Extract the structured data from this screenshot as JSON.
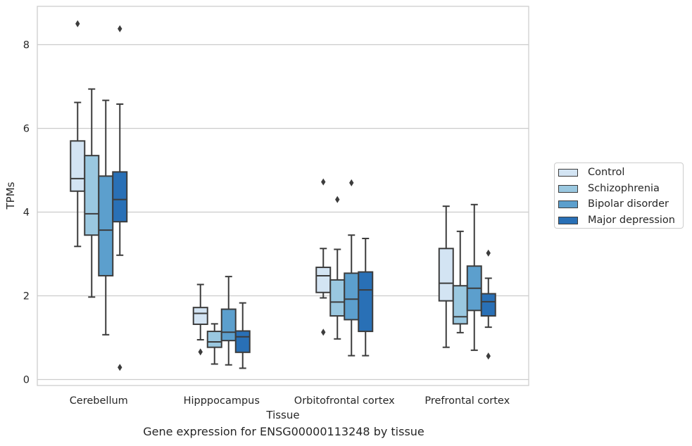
{
  "chart_data": {
    "type": "box",
    "title": "",
    "caption": "Gene expression for ENSG00000113248 by tissue",
    "xlabel": "Tissue",
    "ylabel": "TPMs",
    "ylim": [
      -0.12,
      8.9
    ],
    "yticks": [
      0,
      2,
      4,
      6,
      8
    ],
    "grid": "horizontal",
    "legend_position": "right",
    "categories": [
      "Cerebellum",
      "Hipppocampus",
      "Orbitofrontal cortex",
      "Prefrontal cortex"
    ],
    "series": [
      {
        "name": "Control",
        "color": "#d3e4f3",
        "boxes": [
          {
            "whislo": 3.18,
            "q1": 4.5,
            "med": 4.8,
            "q3": 5.7,
            "whishi": 6.62,
            "fliers": [
              8.5
            ]
          },
          {
            "whislo": 0.95,
            "q1": 1.32,
            "med": 1.58,
            "q3": 1.72,
            "whishi": 2.27,
            "fliers": [
              0.66
            ]
          },
          {
            "whislo": 1.95,
            "q1": 2.08,
            "med": 2.48,
            "q3": 2.68,
            "whishi": 3.13,
            "fliers": [
              4.72,
              1.13
            ]
          },
          {
            "whislo": 0.77,
            "q1": 1.88,
            "med": 2.3,
            "q3": 3.13,
            "whishi": 4.14,
            "fliers": []
          }
        ]
      },
      {
        "name": "Schizophrenia",
        "color": "#9ac8e0",
        "boxes": [
          {
            "whislo": 1.97,
            "q1": 3.45,
            "med": 3.96,
            "q3": 5.35,
            "whishi": 6.94,
            "fliers": []
          },
          {
            "whislo": 0.37,
            "q1": 0.77,
            "med": 0.9,
            "q3": 1.15,
            "whishi": 1.33,
            "fliers": []
          },
          {
            "whislo": 0.97,
            "q1": 1.52,
            "med": 1.85,
            "q3": 2.38,
            "whishi": 3.11,
            "fliers": [
              4.3
            ]
          },
          {
            "whislo": 1.12,
            "q1": 1.33,
            "med": 1.5,
            "q3": 2.24,
            "whishi": 3.54,
            "fliers": []
          }
        ]
      },
      {
        "name": "Bipolar disorder",
        "color": "#5c9fcd",
        "boxes": [
          {
            "whislo": 1.07,
            "q1": 2.48,
            "med": 3.57,
            "q3": 4.86,
            "whishi": 6.67,
            "fliers": []
          },
          {
            "whislo": 0.35,
            "q1": 0.93,
            "med": 1.13,
            "q3": 1.68,
            "whishi": 2.46,
            "fliers": []
          },
          {
            "whislo": 0.57,
            "q1": 1.43,
            "med": 1.92,
            "q3": 2.54,
            "whishi": 3.45,
            "fliers": [
              4.7
            ]
          },
          {
            "whislo": 0.7,
            "q1": 1.65,
            "med": 2.18,
            "q3": 2.71,
            "whishi": 4.18,
            "fliers": []
          }
        ]
      },
      {
        "name": "Major depression",
        "color": "#2970b6",
        "boxes": [
          {
            "whislo": 2.97,
            "q1": 3.77,
            "med": 4.3,
            "q3": 4.96,
            "whishi": 6.58,
            "fliers": [
              8.38,
              0.29
            ]
          },
          {
            "whislo": 0.27,
            "q1": 0.65,
            "med": 1.02,
            "q3": 1.16,
            "whishi": 1.83,
            "fliers": []
          },
          {
            "whislo": 0.57,
            "q1": 1.15,
            "med": 2.14,
            "q3": 2.57,
            "whishi": 3.37,
            "fliers": []
          },
          {
            "whislo": 1.25,
            "q1": 1.52,
            "med": 1.86,
            "q3": 2.05,
            "whishi": 2.42,
            "fliers": [
              3.02,
              0.56
            ]
          }
        ]
      }
    ]
  }
}
